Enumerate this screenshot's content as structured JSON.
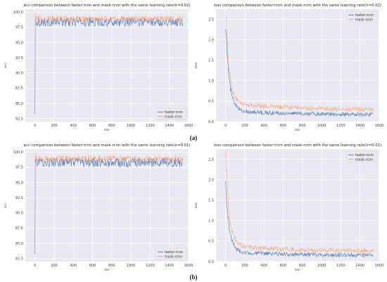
{
  "panel_labels": [
    "(a)",
    "(b)"
  ],
  "colors": {
    "faster_rcnn": "#4c72b0",
    "mask_rcnn": "#f4a57a",
    "plot_bg": "#eaeaf2",
    "grid": "#ffffff"
  },
  "chart_data": [
    {
      "type": "line",
      "title": "acc comparison between faster-rcnn and mask-rcnn with the same learning rate(lr=0.02)",
      "xlabel": "iter",
      "ylabel": "acc",
      "xlim": [
        -100,
        1600
      ],
      "ylim": [
        82,
        100.5
      ],
      "xticks": [
        "0",
        "200",
        "400",
        "600",
        "800",
        "1000",
        "1200",
        "1400",
        "1600"
      ],
      "yticks": [
        "82.5",
        "85.0",
        "87.5",
        "90.0",
        "92.5",
        "95.0",
        "97.5",
        "100.0"
      ],
      "legend": "lower-right",
      "grid": true,
      "series": [
        {
          "name": "faster-rcnn",
          "start": 83.2,
          "level": 98.4,
          "noise": 0.75
        },
        {
          "name": "mask-rcnn",
          "start": 95.0,
          "level": 98.9,
          "noise": 0.55
        }
      ]
    },
    {
      "type": "line",
      "title": "loss comparison between faster-rcnn and mask-rcnn with the same learning rate(lr=0.02)",
      "xlabel": "iter",
      "ylabel": "loss",
      "xlim": [
        -100,
        1600
      ],
      "ylim": [
        0,
        2.75
      ],
      "xticks": [
        "0",
        "200",
        "400",
        "600",
        "800",
        "1000",
        "1200",
        "1400",
        "1600"
      ],
      "yticks": [
        "0.0",
        "0.5",
        "1.0",
        "1.5",
        "2.0",
        "2.5"
      ],
      "legend": "top-right",
      "grid": true,
      "series": [
        {
          "name": "faster-rcnn",
          "start": 2.3,
          "level": 0.17,
          "noise": 0.05
        },
        {
          "name": "mask-rcnn",
          "start": 2.55,
          "level": 0.29,
          "noise": 0.06
        }
      ]
    },
    {
      "type": "line",
      "title": "acc comparison between faster-rcnn and mask-rcnn with the same learning rate(lr=0.01)",
      "xlabel": "iter",
      "ylabel": "acc",
      "xlim": [
        -100,
        1600
      ],
      "ylim": [
        82,
        100.5
      ],
      "xticks": [
        "0",
        "200",
        "400",
        "600",
        "800",
        "1000",
        "1200",
        "1400",
        "1600"
      ],
      "yticks": [
        "82.5",
        "85.0",
        "87.5",
        "90.0",
        "92.5",
        "95.0",
        "97.5",
        "100.0"
      ],
      "legend": "lower-right",
      "grid": true,
      "series": [
        {
          "name": "faster-rcnn",
          "start": 83.2,
          "level": 98.3,
          "noise": 0.8
        },
        {
          "name": "mask-rcnn",
          "start": 94.5,
          "level": 98.9,
          "noise": 0.55
        }
      ]
    },
    {
      "type": "line",
      "title": "loss comparison between faster-rcnn and mask-rcnn with the same learning rate(lr=0.01)",
      "xlabel": "iter",
      "ylabel": "loss",
      "xlim": [
        -100,
        1600
      ],
      "ylim": [
        0,
        2.75
      ],
      "xticks": [
        "0",
        "200",
        "400",
        "600",
        "800",
        "1000",
        "1200",
        "1400",
        "1600"
      ],
      "yticks": [
        "0.0",
        "0.5",
        "1.0",
        "1.5",
        "2.0",
        "2.5"
      ],
      "legend": "top-right",
      "grid": true,
      "series": [
        {
          "name": "faster-rcnn",
          "start": 1.8,
          "level": 0.15,
          "noise": 0.05
        },
        {
          "name": "mask-rcnn",
          "start": 2.45,
          "level": 0.25,
          "noise": 0.06
        }
      ]
    }
  ]
}
